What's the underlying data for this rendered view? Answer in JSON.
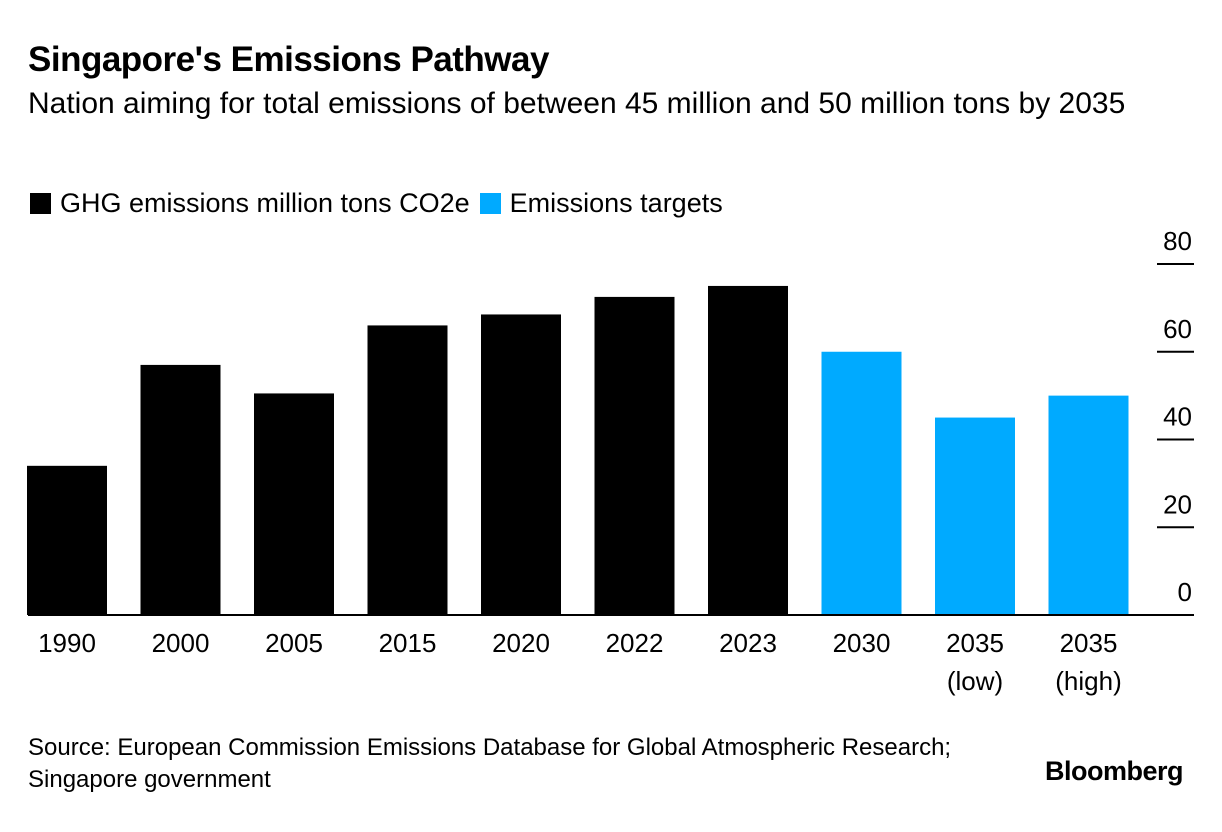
{
  "header": {
    "title": "Singapore's Emissions Pathway",
    "subtitle": "Nation aiming for total emissions of between 45 million and 50 million tons by 2035"
  },
  "legend": [
    {
      "label": "GHG emissions million tons CO2e",
      "color": "#000000"
    },
    {
      "label": "Emissions targets",
      "color": "#00aaff"
    }
  ],
  "chart_data": {
    "type": "bar",
    "categories": [
      [
        "1990"
      ],
      [
        "2000"
      ],
      [
        "2005"
      ],
      [
        "2015"
      ],
      [
        "2020"
      ],
      [
        "2022"
      ],
      [
        "2023"
      ],
      [
        "2030"
      ],
      [
        "2035",
        "(low)"
      ],
      [
        "2035",
        "(high)"
      ]
    ],
    "series": [
      {
        "name": "GHG emissions million tons CO2e",
        "color": "#000000",
        "values": [
          34,
          57,
          50.5,
          66,
          68.5,
          72.5,
          75,
          null,
          null,
          null
        ]
      },
      {
        "name": "Emissions targets",
        "color": "#00aaff",
        "values": [
          null,
          null,
          null,
          null,
          null,
          null,
          null,
          60,
          45,
          50
        ]
      }
    ],
    "title": "Singapore's Emissions Pathway",
    "subtitle": "Nation aiming for total emissions of between 45 million and 50 million tons by 2035",
    "ylim": [
      0,
      80
    ],
    "yticks": [
      0,
      20,
      40,
      60,
      80
    ],
    "ytick_labels": [
      "0",
      "20",
      "40",
      "60",
      "80"
    ],
    "y_axis_side": "right",
    "grid": false,
    "legend_position": "top-left"
  },
  "footer": {
    "source": "Source: European Commission Emissions Database for Global Atmospheric Research; Singapore government",
    "logo": "Bloomberg"
  }
}
